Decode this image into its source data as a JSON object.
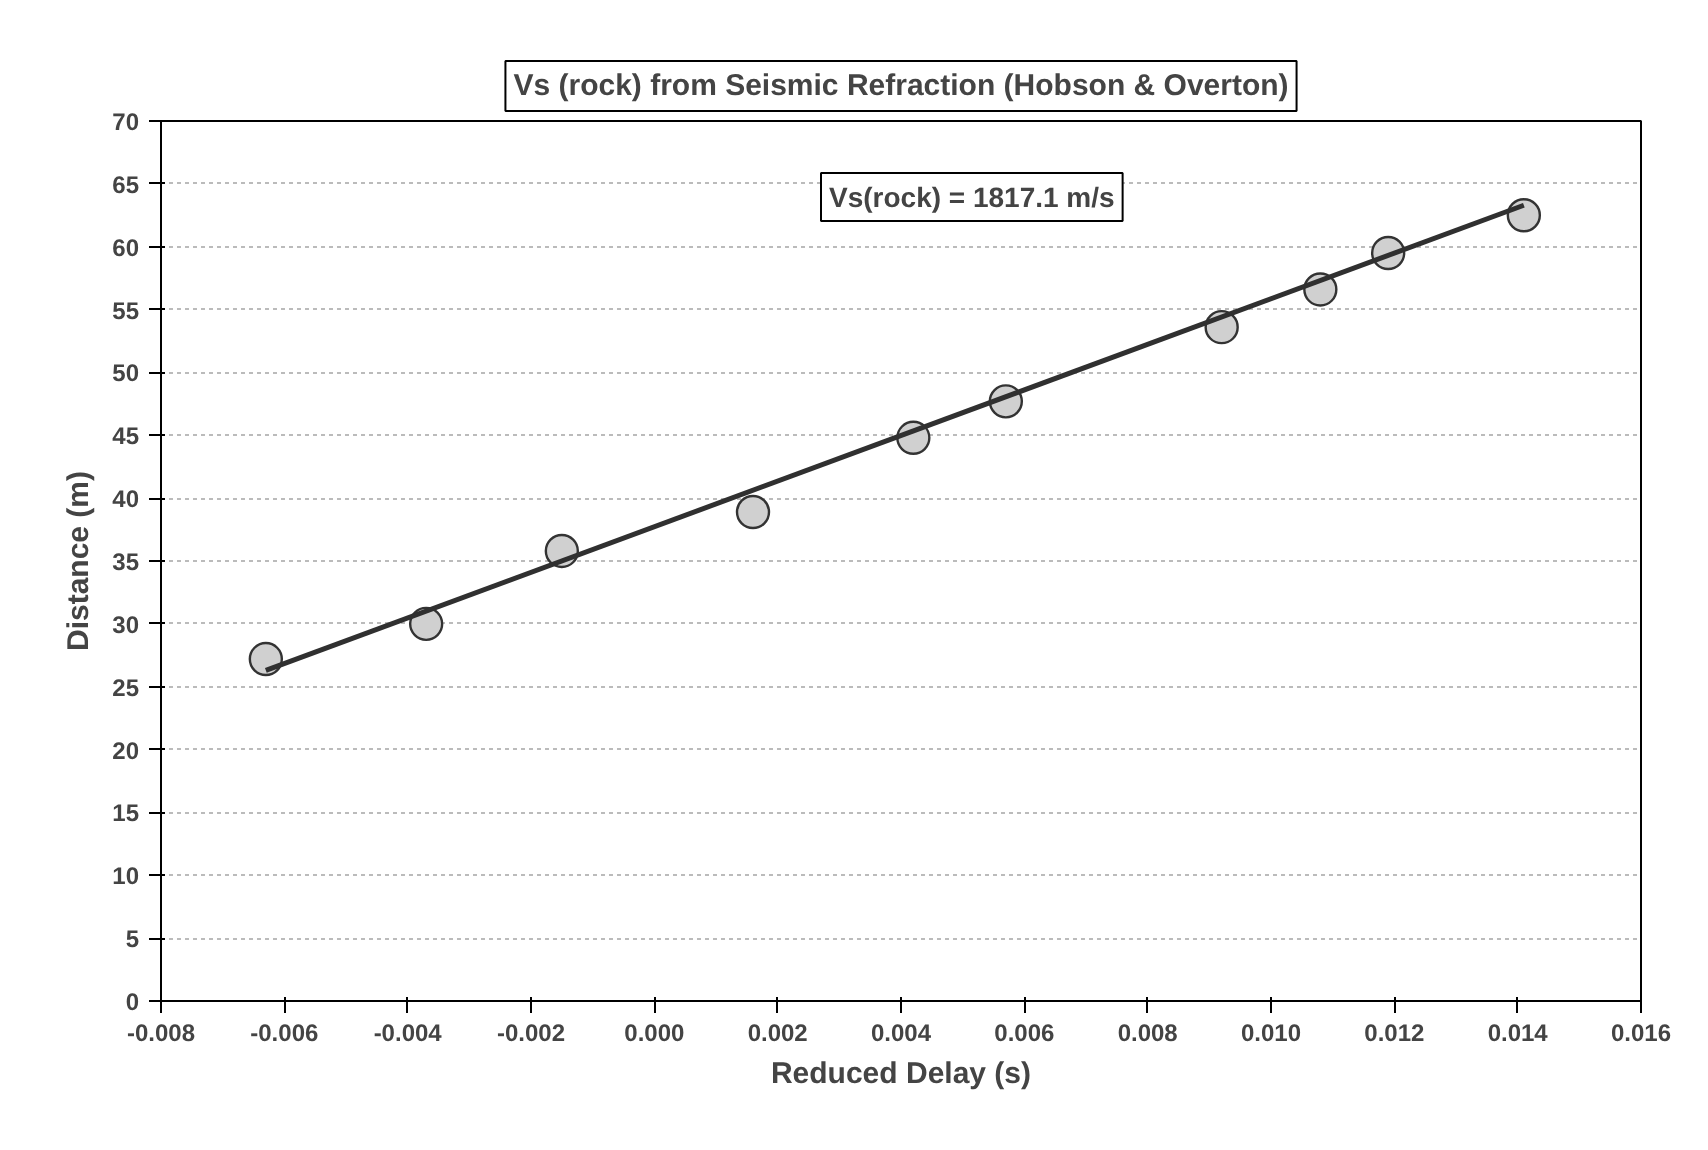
{
  "chart_data": {
    "type": "scatter",
    "title": "Vs (rock) from Seismic Refraction (Hobson & Overton)",
    "xlabel": "Reduced Delay (s)",
    "ylabel": "Distance (m)",
    "annotations": [
      "Vs(rock) = 1817.1 m/s"
    ],
    "series": [
      {
        "color": "#d0d0d0",
        "marker": "circle",
        "x": [
          -0.0063,
          -0.0037,
          -0.0015,
          0.0016,
          0.0042,
          0.0057,
          0.0092,
          0.0108,
          0.0119,
          0.0141
        ],
        "values": [
          27.2,
          30.0,
          35.8,
          38.9,
          44.8,
          47.7,
          53.6,
          56.6,
          59.5,
          62.5
        ]
      },
      {
        "type": "line",
        "color": "#303030",
        "line_style": "solid",
        "x": [
          -0.0063,
          0.0141
        ],
        "values": [
          26.3,
          63.3
        ]
      }
    ],
    "xlim": [
      -0.008,
      0.016
    ],
    "ylim": [
      0,
      70
    ],
    "xticks": [
      {
        "value": -0.008,
        "label": "-0.008"
      },
      {
        "value": -0.006,
        "label": "-0.006"
      },
      {
        "value": -0.004,
        "label": "-0.004"
      },
      {
        "value": -0.002,
        "label": "-0.002"
      },
      {
        "value": 0,
        "label": "0.000"
      },
      {
        "value": 0.002,
        "label": "0.002"
      },
      {
        "value": 0.004,
        "label": "0.004"
      },
      {
        "value": 0.006,
        "label": "0.006"
      },
      {
        "value": 0.008,
        "label": "0.008"
      },
      {
        "value": 0.01,
        "label": "0.010"
      },
      {
        "value": 0.012,
        "label": "0.012"
      },
      {
        "value": 0.014,
        "label": "0.014"
      },
      {
        "value": 0.016,
        "label": "0.016"
      }
    ],
    "yticks": [
      0,
      5,
      10,
      15,
      20,
      25,
      30,
      35,
      40,
      45,
      50,
      55,
      60,
      65,
      70
    ],
    "grid": "y"
  }
}
